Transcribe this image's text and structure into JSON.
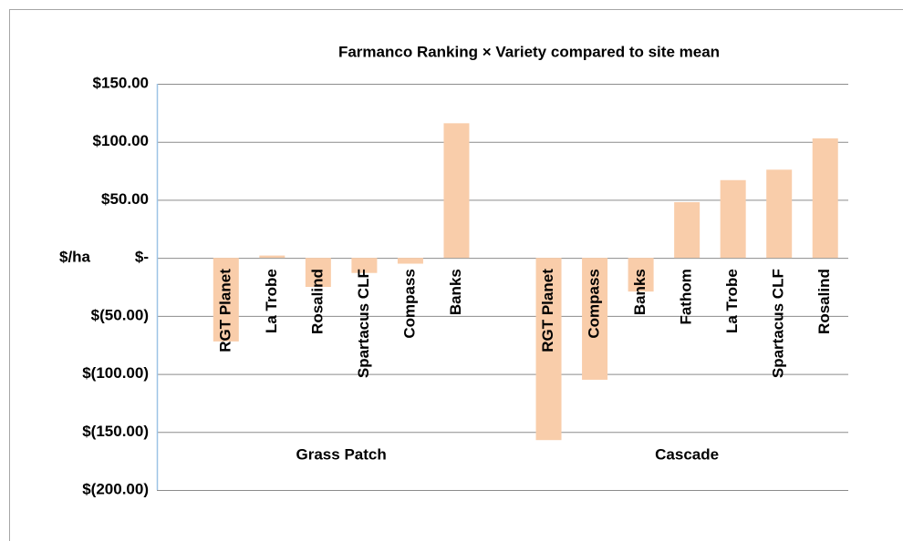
{
  "chart_data": {
    "type": "bar",
    "title": "Farmanco Ranking  × Variety compared to site mean",
    "ylabel": "$/ha",
    "color": "#f9cdaa",
    "groups": [
      {
        "label": "Grass Patch",
        "categories": [
          "RGT Planet",
          "La Trobe",
          "Rosalind",
          "Spartacus CLF",
          "Compass",
          "Banks"
        ],
        "values": [
          -72,
          2,
          -25,
          -13,
          -5,
          116
        ]
      },
      {
        "label": "Cascade",
        "categories": [
          "RGT Planet",
          "Compass",
          "Banks",
          "Fathom",
          "La Trobe",
          "Spartacus CLF",
          "Rosalind"
        ],
        "values": [
          -157,
          -105,
          -29,
          48,
          67,
          76,
          103
        ]
      }
    ],
    "ylim": [
      -200,
      150
    ],
    "yticks": [
      {
        "value": 150,
        "label": "$150.00"
      },
      {
        "value": 100,
        "label": "$100.00"
      },
      {
        "value": 50,
        "label": "$50.00"
      },
      {
        "value": 0,
        "label": "$-"
      },
      {
        "value": -50,
        "label": "$(50.00)"
      },
      {
        "value": -100,
        "label": "$(100.00)"
      },
      {
        "value": -150,
        "label": "$(150.00)"
      },
      {
        "value": -200,
        "label": "$(200.00)"
      }
    ],
    "grid": true
  }
}
